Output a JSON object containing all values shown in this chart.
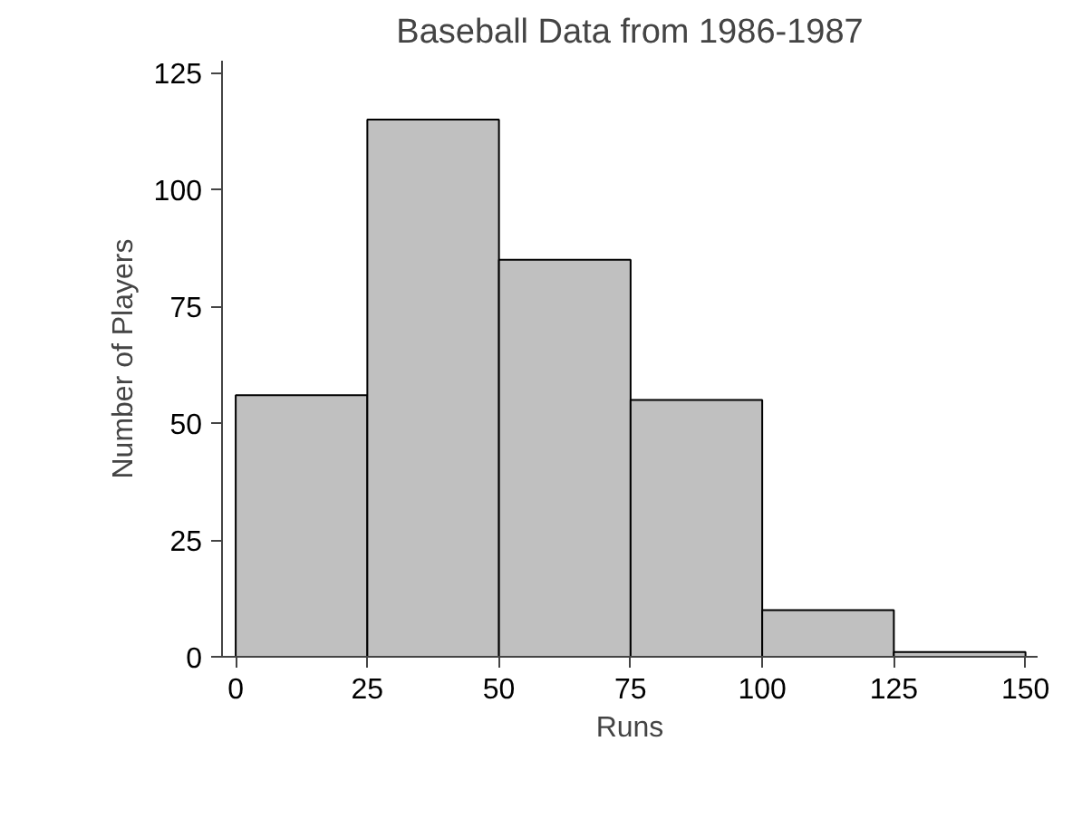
{
  "chart_data": {
    "type": "histogram",
    "title": "Baseball Data from 1986-1987",
    "xlabel": "Runs",
    "ylabel": "Number of Players",
    "bins": [
      0,
      25,
      50,
      75,
      100,
      125,
      150
    ],
    "values": [
      56,
      115,
      85,
      55,
      10,
      1
    ],
    "color": "#c0c0c0",
    "xlim": [
      -2.6,
      152.3
    ],
    "ylim": [
      0,
      127.6
    ],
    "xticks": [
      0,
      25,
      50,
      75,
      100,
      125,
      150
    ],
    "yticks": [
      0,
      25,
      50,
      75,
      100,
      125
    ],
    "grid": false
  }
}
